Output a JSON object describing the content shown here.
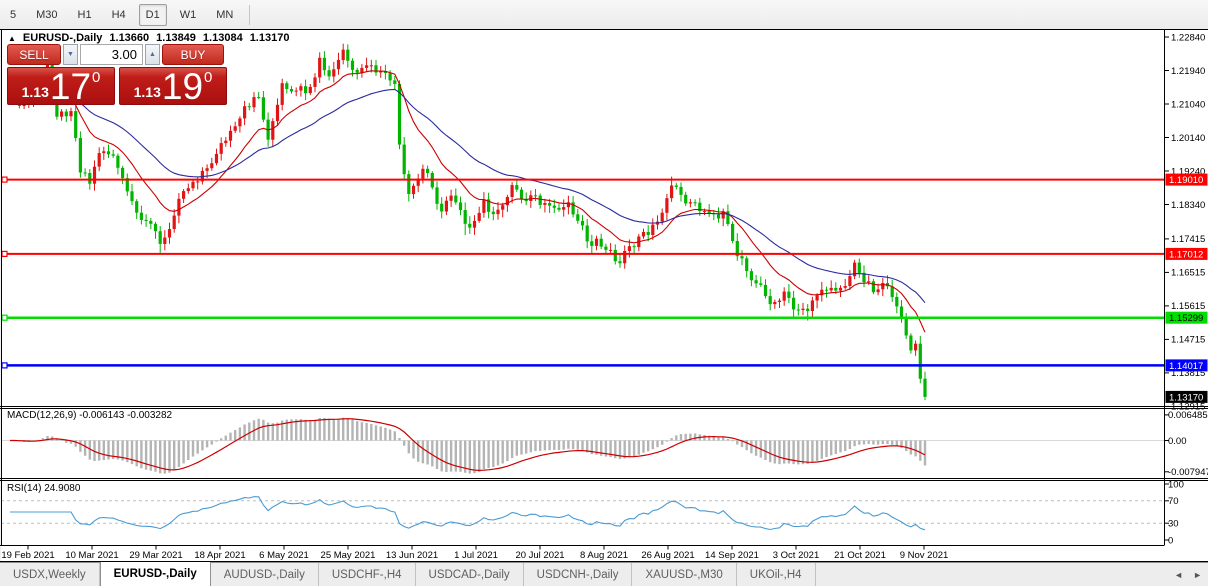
{
  "toolbar": {
    "timeframes": [
      {
        "label": "5",
        "active": false
      },
      {
        "label": "M30",
        "active": false
      },
      {
        "label": "H1",
        "active": false
      },
      {
        "label": "H4",
        "active": false
      },
      {
        "label": "D1",
        "active": true
      },
      {
        "label": "W1",
        "active": false
      },
      {
        "label": "MN",
        "active": false
      }
    ]
  },
  "chart": {
    "symbol_line": {
      "collapse_icon": "▲",
      "symbol": "EURUSD-,Daily",
      "open": "1.13660",
      "high": "1.13849",
      "low": "1.13084",
      "close": "1.13170"
    },
    "trade_panel": {
      "sell_label": "SELL",
      "buy_label": "BUY",
      "volume": "3.00",
      "spin_down_icon": "▼",
      "spin_up_icon": "▲",
      "sell_price": {
        "small": "1.13",
        "big": "17",
        "sup": "0"
      },
      "buy_price": {
        "small": "1.13",
        "big": "19",
        "sup": "0"
      }
    }
  },
  "chart_data": {
    "type": "candlestick",
    "symbol": "EURUSD-",
    "timeframe": "Daily",
    "color_convention": "red = bullish candle, green = bearish candle",
    "current_bar": {
      "open": 1.1366,
      "high": 1.13849,
      "low": 1.13084,
      "close": 1.1317
    },
    "x_labels": [
      "19 Feb 2021",
      "10 Mar 2021",
      "29 Mar 2021",
      "18 Apr 2021",
      "6 May 2021",
      "25 May 2021",
      "13 Jun 2021",
      "1 Jul 2021",
      "20 Jul 2021",
      "8 Aug 2021",
      "26 Aug 2021",
      "14 Sep 2021",
      "3 Oct 2021",
      "21 Oct 2021",
      "9 Nov 2021"
    ],
    "y_ticks": [
      "1.22840",
      "1.21940",
      "1.21040",
      "1.20140",
      "1.19240",
      "1.18340",
      "1.17415",
      "1.16515",
      "1.15615",
      "1.14715",
      "1.13815",
      "1.12915"
    ],
    "hlines": [
      {
        "value": 1.1901,
        "label": "1.19010",
        "color": "#ff0000",
        "text_color": "#ffffff",
        "width": 2
      },
      {
        "value": 1.17012,
        "label": "1.17012",
        "color": "#ff0000",
        "text_color": "#ffffff",
        "width": 2
      },
      {
        "value": 1.15299,
        "label": "1.15299",
        "color": "#00dd00",
        "text_color": "#000000",
        "width": 2.5
      },
      {
        "value": 1.14017,
        "label": "1.14017",
        "color": "#0000ff",
        "text_color": "#ffffff",
        "width": 2.5
      }
    ],
    "current_price_badge": {
      "value": 1.1317,
      "label": "1.13170",
      "color": "#000000",
      "text_color": "#ffffff"
    },
    "n_candles": 196,
    "close_anchors": [
      [
        0,
        1.2128
      ],
      [
        3,
        1.2102
      ],
      [
        5,
        1.214
      ],
      [
        8,
        1.2215
      ],
      [
        10,
        1.207
      ],
      [
        13,
        1.2085
      ],
      [
        15,
        1.192
      ],
      [
        17,
        1.189
      ],
      [
        19,
        1.1972
      ],
      [
        22,
        1.1965
      ],
      [
        24,
        1.1905
      ],
      [
        27,
        1.1812
      ],
      [
        30,
        1.1782
      ],
      [
        32,
        1.1728
      ],
      [
        34,
        1.1768
      ],
      [
        37,
        1.187
      ],
      [
        40,
        1.1896
      ],
      [
        44,
        1.197
      ],
      [
        47,
        1.2032
      ],
      [
        50,
        1.2098
      ],
      [
        53,
        1.2122
      ],
      [
        55,
        1.2008
      ],
      [
        58,
        1.216
      ],
      [
        61,
        1.214
      ],
      [
        64,
        1.215
      ],
      [
        66,
        1.2228
      ],
      [
        68,
        1.2178
      ],
      [
        71,
        1.225
      ],
      [
        74,
        1.2188
      ],
      [
        76,
        1.2208
      ],
      [
        79,
        1.2192
      ],
      [
        82,
        1.2158
      ],
      [
        83,
        1.1995
      ],
      [
        85,
        1.1862
      ],
      [
        88,
        1.193
      ],
      [
        90,
        1.188
      ],
      [
        92,
        1.1815
      ],
      [
        94,
        1.1858
      ],
      [
        97,
        1.1782
      ],
      [
        99,
        1.179
      ],
      [
        101,
        1.1848
      ],
      [
        103,
        1.1808
      ],
      [
        105,
        1.1832
      ],
      [
        107,
        1.1886
      ],
      [
        109,
        1.1848
      ],
      [
        112,
        1.1858
      ],
      [
        114,
        1.1838
      ],
      [
        117,
        1.182
      ],
      [
        119,
        1.184
      ],
      [
        121,
        1.179
      ],
      [
        123,
        1.1735
      ],
      [
        125,
        1.1742
      ],
      [
        127,
        1.1712
      ],
      [
        130,
        1.1676
      ],
      [
        132,
        1.1722
      ],
      [
        134,
        1.1748
      ],
      [
        136,
        1.1752
      ],
      [
        138,
        1.1788
      ],
      [
        141,
        1.1885
      ],
      [
        143,
        1.186
      ],
      [
        145,
        1.184
      ],
      [
        147,
        1.1816
      ],
      [
        150,
        1.1808
      ],
      [
        152,
        1.1816
      ],
      [
        155,
        1.1695
      ],
      [
        157,
        1.1655
      ],
      [
        159,
        1.1622
      ],
      [
        161,
        1.1588
      ],
      [
        163,
        1.1572
      ],
      [
        165,
        1.16
      ],
      [
        167,
        1.1552
      ],
      [
        170,
        1.1548
      ],
      [
        172,
        1.159
      ],
      [
        175,
        1.161
      ],
      [
        178,
        1.1615
      ],
      [
        180,
        1.1678
      ],
      [
        182,
        1.1625
      ],
      [
        185,
        1.1606
      ],
      [
        187,
        1.1614
      ],
      [
        189,
        1.156
      ],
      [
        190,
        1.153
      ],
      [
        191,
        1.1482
      ],
      [
        192,
        1.1442
      ],
      [
        193,
        1.146
      ],
      [
        194,
        1.1366
      ],
      [
        195,
        1.1317
      ]
    ],
    "wick_highs": [
      [
        8,
        1.2232
      ],
      [
        71,
        1.2266
      ],
      [
        141,
        1.1909
      ]
    ],
    "wick_lows": [
      [
        32,
        1.1704
      ],
      [
        97,
        1.1752
      ],
      [
        130,
        1.1664
      ],
      [
        167,
        1.1526
      ],
      [
        170,
        1.1522
      ],
      [
        190,
        1.1516
      ]
    ],
    "moving_averages": [
      {
        "name": "ma-fast",
        "color": "#cc0000",
        "period_estimate": 13
      },
      {
        "name": "ma-slow",
        "color": "#2b2b9e",
        "period_estimate": 34
      }
    ],
    "indicators": {
      "macd": {
        "label": "MACD(12,26,9) -0.006143 -0.003282",
        "params": [
          12,
          26,
          9
        ],
        "value": -0.006143,
        "signal": -0.003282,
        "axis": [
          "0.006485",
          "0.00",
          "-0.007947"
        ],
        "hist_color": "#b4b4b4",
        "signal_color": "#cc0000"
      },
      "rsi": {
        "label": "RSI(14) 24.9080",
        "period": 14,
        "value": 24.908,
        "axis": [
          "100",
          "70",
          "30",
          "0"
        ],
        "levels": [
          70,
          30
        ],
        "line_color": "#4a9bd4"
      }
    },
    "colors": {
      "bull": "#e01515",
      "bear": "#00b400"
    }
  },
  "tabs": {
    "items": [
      {
        "label": "USDX,Weekly",
        "active": false
      },
      {
        "label": "EURUSD-,Daily",
        "active": true
      },
      {
        "label": "AUDUSD-,Daily",
        "active": false
      },
      {
        "label": "USDCHF-,H4",
        "active": false
      },
      {
        "label": "USDCAD-,Daily",
        "active": false
      },
      {
        "label": "USDCNH-,Daily",
        "active": false
      },
      {
        "label": "XAUUSD-,M30",
        "active": false
      },
      {
        "label": "UKOil-,H4",
        "active": false
      }
    ],
    "scroll_left": "◄",
    "scroll_right": "►"
  }
}
